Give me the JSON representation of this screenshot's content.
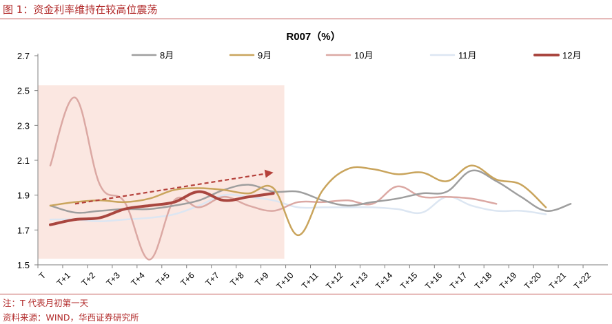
{
  "figure": {
    "caption": "图 1：资金利率维持在较高位震荡",
    "note": "注：T 代表月初第一天",
    "source": "资料来源：WIND，华西证券研究所"
  },
  "chart_data": {
    "type": "line",
    "title": "R007（%）",
    "xlabel": "",
    "ylabel": "",
    "ylim": [
      1.5,
      2.7
    ],
    "yticks": [
      "1.5",
      "1.7",
      "1.9",
      "2.1",
      "2.3",
      "2.5",
      "2.7"
    ],
    "yticks_values": [
      1.5,
      1.7,
      1.9,
      2.1,
      2.3,
      2.5,
      2.7
    ],
    "categories": [
      "T",
      "T+1",
      "T+2",
      "T+3",
      "T+4",
      "T+5",
      "T+6",
      "T+7",
      "T+8",
      "T+9",
      "T+10",
      "T+11",
      "T+12",
      "T+13",
      "T+14",
      "T+15",
      "T+16",
      "T+17",
      "T+18",
      "T+19",
      "T+20",
      "T+21",
      "T+22"
    ],
    "legend_position": "top",
    "series": [
      {
        "name": "8月",
        "color": "#9e9e9e",
        "width": 2.5,
        "values": [
          1.84,
          1.8,
          1.81,
          1.82,
          1.82,
          1.84,
          1.87,
          1.93,
          1.96,
          1.92,
          1.92,
          1.87,
          1.84,
          1.86,
          1.88,
          1.91,
          1.92,
          2.04,
          1.98,
          1.89,
          1.81,
          1.85,
          null
        ]
      },
      {
        "name": "9月",
        "color": "#c9a45c",
        "width": 2.5,
        "values": [
          1.84,
          1.86,
          1.87,
          1.86,
          1.88,
          1.93,
          1.94,
          1.93,
          1.91,
          1.94,
          1.67,
          1.93,
          2.05,
          2.05,
          2.02,
          2.03,
          1.98,
          2.07,
          1.99,
          1.96,
          1.83,
          null,
          null
        ]
      },
      {
        "name": "10月",
        "color": "#dba8a3",
        "width": 2.5,
        "values": [
          2.07,
          2.46,
          1.96,
          1.86,
          1.53,
          1.87,
          1.83,
          1.89,
          1.84,
          1.81,
          1.86,
          1.86,
          1.87,
          1.85,
          1.95,
          1.89,
          1.89,
          1.88,
          1.85,
          null,
          null,
          null,
          null
        ]
      },
      {
        "name": "11月",
        "color": "#dce6f2",
        "width": 2.5,
        "values": [
          1.76,
          1.76,
          1.75,
          1.76,
          1.77,
          1.79,
          1.84,
          1.9,
          1.89,
          1.87,
          1.83,
          1.83,
          1.83,
          1.83,
          1.82,
          1.8,
          1.89,
          1.84,
          1.81,
          1.81,
          1.79,
          null,
          null
        ]
      },
      {
        "name": "12月",
        "color": "#a9463f",
        "width": 4,
        "values": [
          1.73,
          1.76,
          1.77,
          1.82,
          1.84,
          1.86,
          1.92,
          1.87,
          1.89,
          1.91,
          null,
          null,
          null,
          null,
          null,
          null,
          null,
          null,
          null,
          null,
          null,
          null,
          null
        ]
      }
    ],
    "highlight_range": {
      "from": "T",
      "to": "T+9"
    },
    "trend_arrow": {
      "from_x": "T+1",
      "from_y": 1.85,
      "to_x": "T+9",
      "to_y": 2.03
    }
  }
}
